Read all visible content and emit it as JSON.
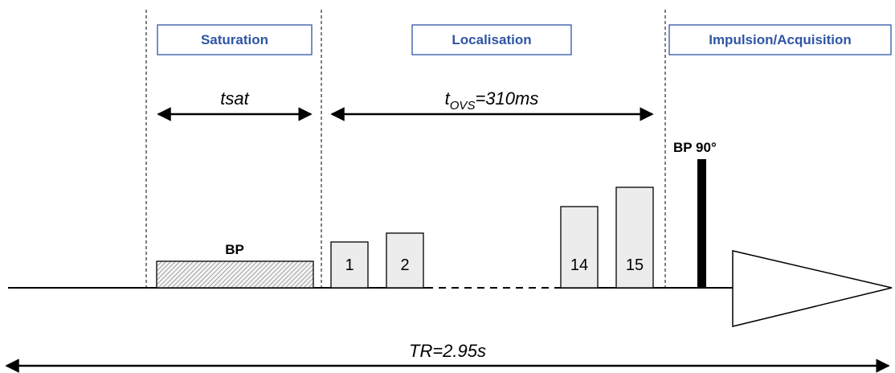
{
  "phases": {
    "saturation": "Saturation",
    "localisation": "Localisation",
    "acquisition": "Impulsion/Acquisition"
  },
  "durations": {
    "tsat": "tsat",
    "tovs_prefix": "t",
    "tovs_subscript": "OVS",
    "tovs_value": "=310ms",
    "tr": "TR=2.95s"
  },
  "pulses": {
    "saturation_label": "BP",
    "ovs_labels": [
      "1",
      "2",
      "14",
      "15"
    ],
    "excitation_label": "BP 90°"
  },
  "colors": {
    "phase_border": "#2f55a4",
    "phase_text": "#2f55a4",
    "pulse_fill": "#ececec"
  }
}
